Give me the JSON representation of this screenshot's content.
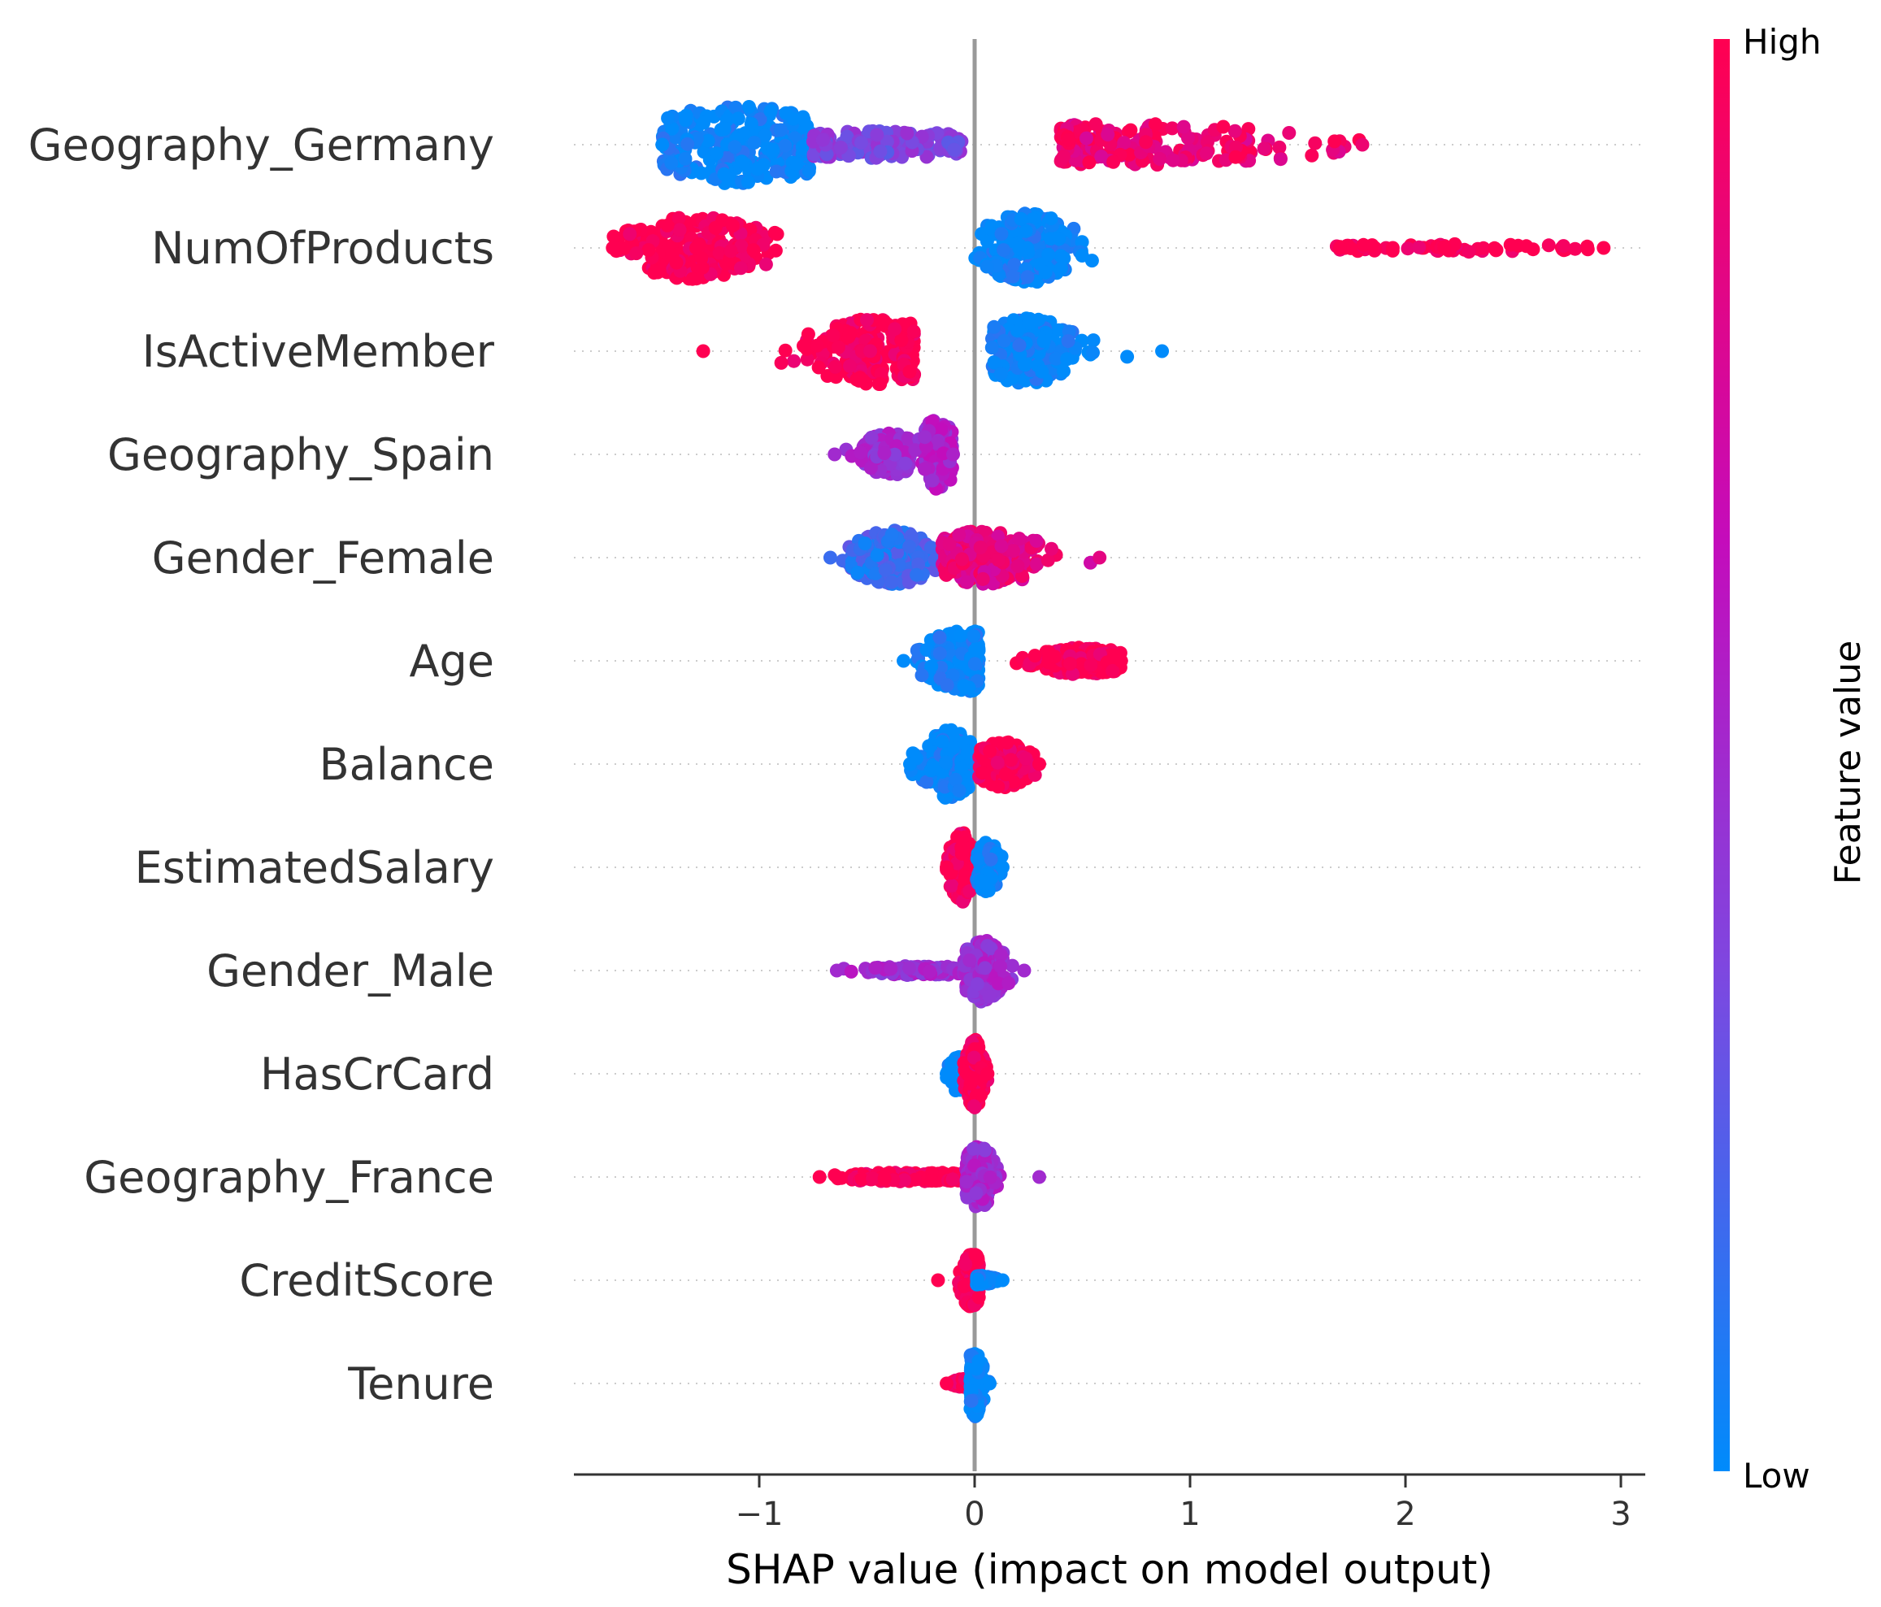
{
  "chart_data": {
    "type": "scatter",
    "subtype": "shap-beeswarm-summary",
    "title": "",
    "xlabel": "SHAP value (impact on model output)",
    "ylabel": "",
    "xlim": [
      -1.88,
      3.14
    ],
    "xticks": [
      -1,
      0,
      1,
      2,
      3
    ],
    "xtick_labels": [
      "−1",
      "0",
      "1",
      "2",
      "3"
    ],
    "grid": false,
    "features": [
      {
        "name": "Geography_Germany",
        "min": -1.45,
        "max": 1.8,
        "clusters": [
          {
            "range": [
              -1.45,
              -0.75
            ],
            "center": -1.1,
            "spread": 0.25,
            "height": 1.0,
            "value": 0.0,
            "n": 260
          },
          {
            "range": [
              -0.75,
              -0.05
            ],
            "center": -0.45,
            "spread": 0.3,
            "height": 0.35,
            "value": 0.35,
            "n": 150
          },
          {
            "range": [
              0.4,
              1.8
            ],
            "center": 0.75,
            "spread": 0.45,
            "height": 0.55,
            "value": 0.9,
            "n": 190
          }
        ]
      },
      {
        "name": "NumOfProducts",
        "min": -1.68,
        "max": 2.92,
        "clusters": [
          {
            "range": [
              -1.68,
              -0.9
            ],
            "center": -1.3,
            "spread": 0.18,
            "height": 0.8,
            "value": 1.0,
            "n": 230
          },
          {
            "range": [
              0.0,
              0.6
            ],
            "center": 0.25,
            "spread": 0.12,
            "height": 0.9,
            "value": 0.0,
            "n": 200
          },
          {
            "range": [
              1.65,
              2.92
            ],
            "center": 2.2,
            "spread": 0.4,
            "height": 0.1,
            "value": 1.0,
            "n": 70
          }
        ]
      },
      {
        "name": "IsActiveMember",
        "min": -1.26,
        "max": 0.87,
        "clusters": [
          {
            "range": [
              -1.26,
              -0.28
            ],
            "center": -0.45,
            "spread": 0.18,
            "height": 0.85,
            "value": 1.0,
            "n": 220
          },
          {
            "range": [
              0.08,
              0.87
            ],
            "center": 0.25,
            "spread": 0.12,
            "height": 0.85,
            "value": 0.0,
            "n": 220
          }
        ]
      },
      {
        "name": "Geography_Spain",
        "min": -0.65,
        "max": -0.1,
        "clusters": [
          {
            "range": [
              -0.65,
              -0.3
            ],
            "center": -0.4,
            "spread": 0.08,
            "height": 0.55,
            "value": 0.5,
            "n": 140
          },
          {
            "range": [
              -0.35,
              -0.1
            ],
            "center": -0.17,
            "spread": 0.05,
            "height": 0.9,
            "value": 0.55,
            "n": 120
          }
        ]
      },
      {
        "name": "Gender_Female",
        "min": -0.67,
        "max": 0.58,
        "clusters": [
          {
            "range": [
              -0.67,
              -0.05
            ],
            "center": -0.38,
            "spread": 0.1,
            "height": 0.7,
            "value": 0.15,
            "n": 200
          },
          {
            "range": [
              -0.15,
              0.58
            ],
            "center": 0.05,
            "spread": 0.15,
            "height": 0.7,
            "value": 0.85,
            "n": 220
          }
        ]
      },
      {
        "name": "Age",
        "min": -0.33,
        "max": 0.68,
        "clusters": [
          {
            "range": [
              -0.33,
              0.02
            ],
            "center": -0.05,
            "spread": 0.1,
            "height": 0.8,
            "value": 0.0,
            "n": 200
          },
          {
            "range": [
              0.02,
              0.68
            ],
            "center": 0.5,
            "spread": 0.12,
            "height": 0.35,
            "value": 1.0,
            "n": 220
          }
        ]
      },
      {
        "name": "Balance",
        "min": -0.3,
        "max": 0.3,
        "clusters": [
          {
            "range": [
              -0.3,
              -0.02
            ],
            "center": -0.12,
            "spread": 0.06,
            "height": 0.9,
            "value": 0.0,
            "n": 200
          },
          {
            "range": [
              0.02,
              0.3
            ],
            "center": 0.13,
            "spread": 0.07,
            "height": 0.6,
            "value": 1.0,
            "n": 190
          }
        ]
      },
      {
        "name": "EstimatedSalary",
        "min": -0.13,
        "max": 0.13,
        "clusters": [
          {
            "range": [
              -0.13,
              0.01
            ],
            "center": -0.06,
            "spread": 0.03,
            "height": 0.9,
            "value": 1.0,
            "n": 150
          },
          {
            "range": [
              0.01,
              0.13
            ],
            "center": 0.06,
            "spread": 0.03,
            "height": 0.65,
            "value": 0.0,
            "n": 130
          }
        ]
      },
      {
        "name": "Gender_Male",
        "min": -0.64,
        "max": 0.23,
        "clusters": [
          {
            "range": [
              -0.64,
              -0.02
            ],
            "center": -0.25,
            "spread": 0.15,
            "height": 0.12,
            "value": 0.5,
            "n": 120
          },
          {
            "range": [
              -0.05,
              0.23
            ],
            "center": 0.04,
            "spread": 0.05,
            "height": 0.8,
            "value": 0.5,
            "n": 170
          }
        ]
      },
      {
        "name": "HasCrCard",
        "min": -0.13,
        "max": 0.06,
        "clusters": [
          {
            "range": [
              -0.13,
              -0.03
            ],
            "center": -0.08,
            "spread": 0.02,
            "height": 0.45,
            "value": 0.0,
            "n": 90
          },
          {
            "range": [
              -0.05,
              0.06
            ],
            "center": 0.0,
            "spread": 0.02,
            "height": 0.9,
            "value": 1.0,
            "n": 200
          }
        ]
      },
      {
        "name": "Geography_France",
        "min": -0.72,
        "max": 0.3,
        "clusters": [
          {
            "range": [
              -0.72,
              0.0
            ],
            "center": -0.3,
            "spread": 0.2,
            "height": 0.12,
            "value": 1.0,
            "n": 150
          },
          {
            "range": [
              -0.04,
              0.3
            ],
            "center": 0.02,
            "spread": 0.04,
            "height": 0.8,
            "value": 0.5,
            "n": 170
          }
        ]
      },
      {
        "name": "CreditScore",
        "min": -0.17,
        "max": 0.13,
        "clusters": [
          {
            "range": [
              -0.17,
              0.02
            ],
            "center": -0.01,
            "spread": 0.03,
            "height": 0.7,
            "value": 1.0,
            "n": 150
          },
          {
            "range": [
              0.01,
              0.13
            ],
            "center": 0.03,
            "spread": 0.03,
            "height": 0.12,
            "value": 0.0,
            "n": 60
          }
        ]
      },
      {
        "name": "Tenure",
        "min": -0.13,
        "max": 0.07,
        "clusters": [
          {
            "range": [
              -0.13,
              -0.02
            ],
            "center": -0.05,
            "spread": 0.03,
            "height": 0.12,
            "value": 1.0,
            "n": 60
          },
          {
            "range": [
              -0.02,
              0.07
            ],
            "center": 0.0,
            "spread": 0.02,
            "height": 0.85,
            "value": 0.0,
            "n": 150
          }
        ]
      }
    ],
    "colorbar": {
      "title": "Feature value",
      "high_label": "High",
      "low_label": "Low",
      "colors": [
        "#008bfb",
        "#7e47e0",
        "#c40cbb",
        "#ff0051"
      ]
    },
    "zero_line": {
      "x": 0,
      "color": "#999999"
    }
  }
}
